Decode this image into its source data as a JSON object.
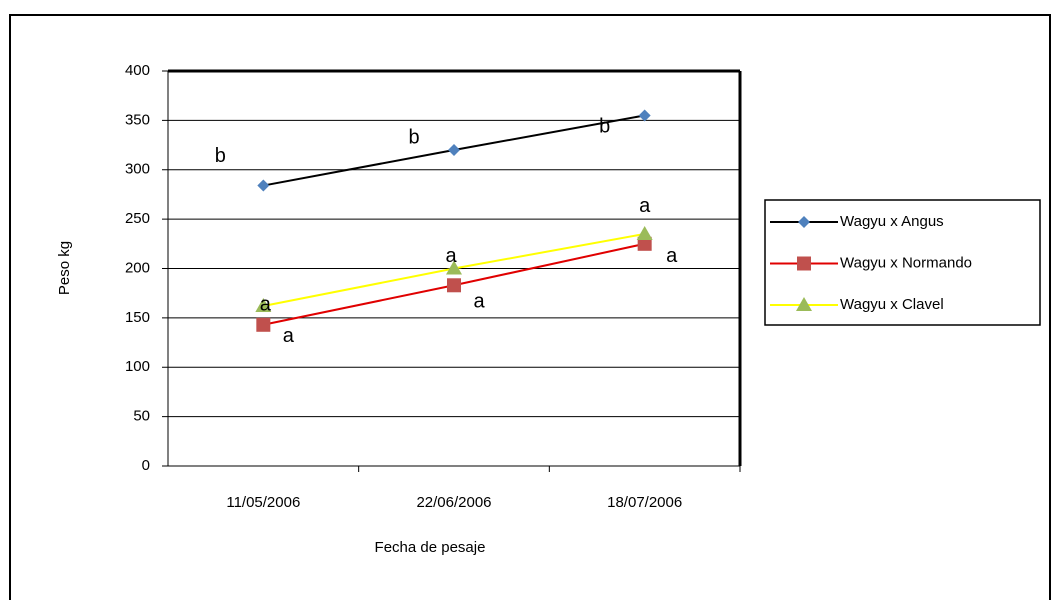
{
  "chart_data": {
    "type": "line",
    "x_label": "Fecha de pesaje",
    "y_label": "Peso kg",
    "categories": [
      "11/05/2006",
      "22/06/2006",
      "18/07/2006"
    ],
    "series": [
      {
        "name": "Wagyu x Angus",
        "color": "#4f81bd",
        "line_color": "#000000",
        "marker": "diamond",
        "values": [
          284,
          320,
          355
        ],
        "point_labels": [
          "b",
          "b",
          "b"
        ]
      },
      {
        "name": "Wagyu x Normando",
        "color": "#c0504d",
        "line_color": "#e00000",
        "marker": "square",
        "values": [
          143,
          183,
          225
        ],
        "point_labels": [
          "a",
          "a",
          "a"
        ]
      },
      {
        "name": "Wagyu x Clavel",
        "color": "#9bbb59",
        "line_color": "#ffff00",
        "marker": "triangle",
        "values": [
          162,
          200,
          235
        ],
        "point_labels": [
          "a",
          "a",
          "a"
        ]
      }
    ],
    "ylim": [
      0,
      400
    ],
    "yticks": [
      0,
      50,
      100,
      150,
      200,
      250,
      300,
      350,
      400
    ],
    "grid": true,
    "legend": "right"
  }
}
